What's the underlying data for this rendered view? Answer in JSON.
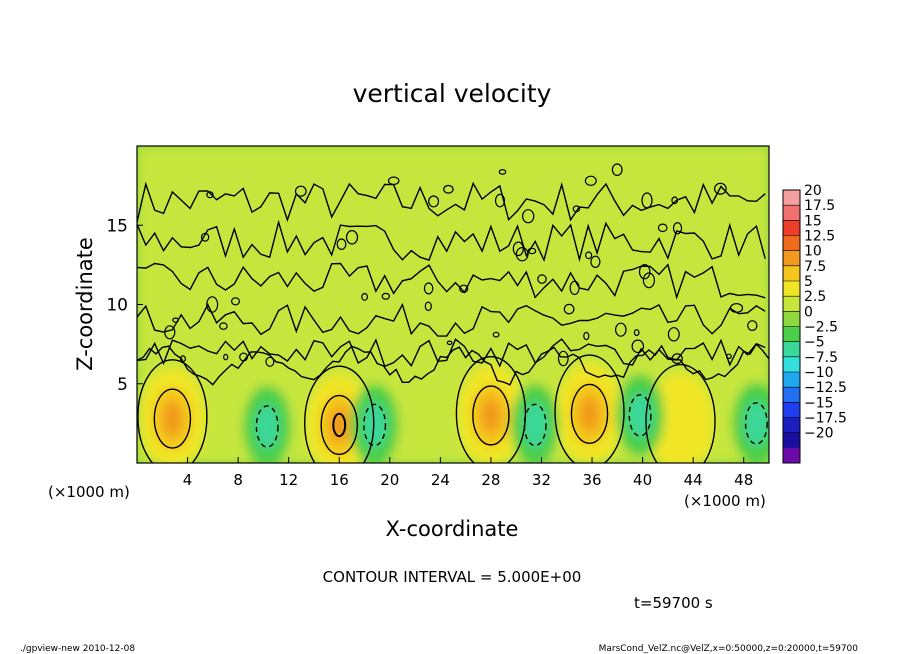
{
  "chart_data": {
    "type": "heatmap",
    "title": "vertical velocity",
    "xlabel": "X-coordinate",
    "ylabel": "Z-coordinate",
    "x_unit": "(×1000 m)",
    "z_unit": "(×1000 m)",
    "xlim": [
      0,
      50
    ],
    "ylim": [
      0,
      20
    ],
    "x_ticks": [
      "4",
      "8",
      "12",
      "16",
      "20",
      "24",
      "28",
      "32",
      "36",
      "40",
      "44",
      "48"
    ],
    "y_ticks": [
      "5",
      "10",
      "15"
    ],
    "contour_interval_text": "CONTOUR INTERVAL = 5.000E+00",
    "time_text": "t=59700 s",
    "colorbar_labels": [
      "20",
      "17.5",
      "15",
      "12.5",
      "10",
      "7.5",
      "5",
      "2.5",
      "0",
      "−2.5",
      "−5",
      "−7.5",
      "−10",
      "−12.5",
      "−15",
      "−17.5",
      "−20"
    ],
    "colorbar_colors": [
      "#f5a0a0",
      "#f07070",
      "#ee3d2a",
      "#f06a1e",
      "#f29a1e",
      "#f4c51e",
      "#f0e628",
      "#c6e63c",
      "#8ed840",
      "#4ccf4a",
      "#3ad89a",
      "#34e0dc",
      "#1ea8f0",
      "#2070f0",
      "#1f3ef0",
      "#1e1ec0",
      "#1a0ea0",
      "#6a0aa8"
    ],
    "updrafts": [
      {
        "x": 2.8,
        "z": 2.8,
        "value": 8
      },
      {
        "x": 16.0,
        "z": 2.4,
        "value": 10
      },
      {
        "x": 28.0,
        "z": 3.0,
        "value": 8
      },
      {
        "x": 35.8,
        "z": 3.1,
        "value": 8
      },
      {
        "x": 43.0,
        "z": 2.5,
        "value": 4
      }
    ],
    "downdrafts": [
      {
        "x": 10.3,
        "z": 2.3,
        "value": -5
      },
      {
        "x": 18.8,
        "z": 2.4,
        "value": -6
      },
      {
        "x": 31.5,
        "z": 2.4,
        "value": -6
      },
      {
        "x": 39.8,
        "z": 3.0,
        "value": -5
      },
      {
        "x": 49.0,
        "z": 2.5,
        "value": -5
      }
    ]
  },
  "footer": {
    "left": "./gpview-new  2010-12-08",
    "right": "MarsCond_VelZ.nc@VelZ,x=0:50000,z=0:20000,t=59700"
  }
}
